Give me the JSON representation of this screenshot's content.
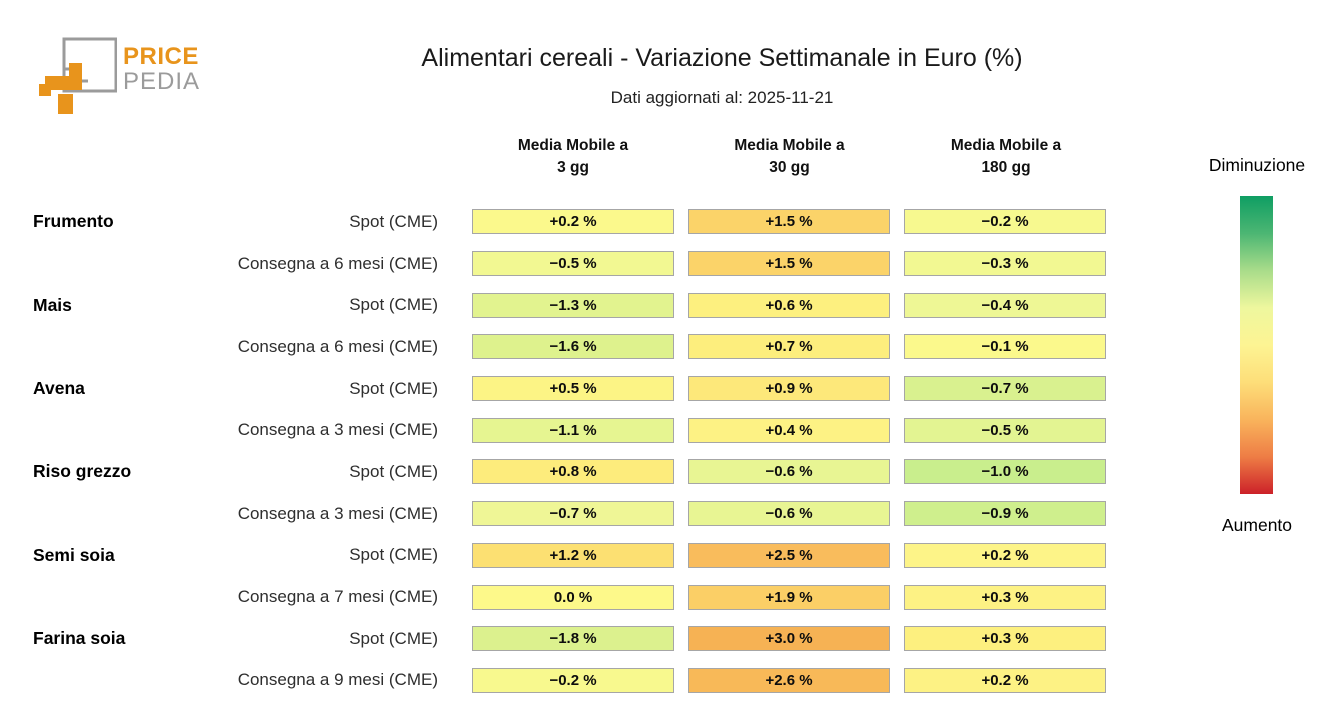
{
  "logo": {
    "line1": "PRICE",
    "line2": "PEDIA",
    "orange": "#e8941c",
    "gray": "#9b9b9b"
  },
  "header": {
    "title": "Alimentari cereali - Variazione Settimanale in Euro (%)",
    "subtitle": "Dati aggiornati al: 2025-11-21"
  },
  "legend": {
    "top_label": "Diminuzione",
    "bottom_label": "Aumento"
  },
  "chart_data": {
    "type": "heatmap",
    "title": "Alimentari cereali - Variazione Settimanale in Euro (%)",
    "subtitle": "Dati aggiornati al: 2025-11-21",
    "unit": "%",
    "columns": [
      {
        "line1": "Media Mobile a",
        "line2": "3 gg"
      },
      {
        "line1": "Media Mobile a",
        "line2": "30 gg"
      },
      {
        "line1": "Media Mobile a",
        "line2": "180 gg"
      }
    ],
    "rows": [
      {
        "group": "Frumento",
        "label": "Spot (CME)",
        "cells": [
          {
            "value": 0.2,
            "display": "+0.2 %",
            "color": "#fbf98c"
          },
          {
            "value": 1.5,
            "display": "+1.5 %",
            "color": "#fbd369"
          },
          {
            "value": -0.2,
            "display": "−0.2 %",
            "color": "#f7f98f"
          }
        ]
      },
      {
        "group": "",
        "label": "Consegna a 6 mesi (CME)",
        "cells": [
          {
            "value": -0.5,
            "display": "−0.5 %",
            "color": "#f2f892"
          },
          {
            "value": 1.5,
            "display": "+1.5 %",
            "color": "#fbd369"
          },
          {
            "value": -0.3,
            "display": "−0.3 %",
            "color": "#f2f892"
          }
        ]
      },
      {
        "group": "Mais",
        "label": "Spot (CME)",
        "cells": [
          {
            "value": -1.3,
            "display": "−1.3 %",
            "color": "#e2f38f"
          },
          {
            "value": 0.6,
            "display": "+0.6 %",
            "color": "#fdf07f"
          },
          {
            "value": -0.4,
            "display": "−0.4 %",
            "color": "#eef795"
          }
        ]
      },
      {
        "group": "",
        "label": "Consegna a 6 mesi (CME)",
        "cells": [
          {
            "value": -1.6,
            "display": "−1.6 %",
            "color": "#def28d"
          },
          {
            "value": 0.7,
            "display": "+0.7 %",
            "color": "#fdee7d"
          },
          {
            "value": -0.1,
            "display": "−0.1 %",
            "color": "#fbf98c"
          }
        ]
      },
      {
        "group": "Avena",
        "label": "Spot (CME)",
        "cells": [
          {
            "value": 0.5,
            "display": "+0.5 %",
            "color": "#fcf485"
          },
          {
            "value": 0.9,
            "display": "+0.9 %",
            "color": "#fde87a"
          },
          {
            "value": -0.7,
            "display": "−0.7 %",
            "color": "#d9f18f"
          }
        ]
      },
      {
        "group": "",
        "label": "Consegna a 3 mesi (CME)",
        "cells": [
          {
            "value": -1.1,
            "display": "−1.1 %",
            "color": "#e6f591"
          },
          {
            "value": 0.4,
            "display": "+0.4 %",
            "color": "#fdf284"
          },
          {
            "value": -0.5,
            "display": "−0.5 %",
            "color": "#e3f492"
          }
        ]
      },
      {
        "group": "Riso grezzo",
        "label": "Spot (CME)",
        "cells": [
          {
            "value": 0.8,
            "display": "+0.8 %",
            "color": "#fdec7c"
          },
          {
            "value": -0.6,
            "display": "−0.6 %",
            "color": "#e8f593"
          },
          {
            "value": -1.0,
            "display": "−1.0 %",
            "color": "#c9ee8d"
          }
        ]
      },
      {
        "group": "",
        "label": "Consegna a 3 mesi (CME)",
        "cells": [
          {
            "value": -0.7,
            "display": "−0.7 %",
            "color": "#eff696"
          },
          {
            "value": -0.6,
            "display": "−0.6 %",
            "color": "#e8f593"
          },
          {
            "value": -0.9,
            "display": "−0.9 %",
            "color": "#cfef8d"
          }
        ]
      },
      {
        "group": "Semi soia",
        "label": "Spot (CME)",
        "cells": [
          {
            "value": 1.2,
            "display": "+1.2 %",
            "color": "#fce072"
          },
          {
            "value": 2.5,
            "display": "+2.5 %",
            "color": "#f9bc5c"
          },
          {
            "value": 0.2,
            "display": "+0.2 %",
            "color": "#fdf488"
          }
        ]
      },
      {
        "group": "",
        "label": "Consegna a 7 mesi (CME)",
        "cells": [
          {
            "value": 0.0,
            "display": "0.0 %",
            "color": "#fdf98a"
          },
          {
            "value": 1.9,
            "display": "+1.9 %",
            "color": "#fbcf66"
          },
          {
            "value": 0.3,
            "display": "+0.3 %",
            "color": "#fdf284"
          }
        ]
      },
      {
        "group": "Farina soia",
        "label": "Spot (CME)",
        "cells": [
          {
            "value": -1.8,
            "display": "−1.8 %",
            "color": "#dcf18e"
          },
          {
            "value": 3.0,
            "display": "+3.0 %",
            "color": "#f6b254"
          },
          {
            "value": 0.3,
            "display": "+0.3 %",
            "color": "#fdf07f"
          }
        ]
      },
      {
        "group": "",
        "label": "Consegna a 9 mesi (CME)",
        "cells": [
          {
            "value": -0.2,
            "display": "−0.2 %",
            "color": "#f8f98e"
          },
          {
            "value": 2.6,
            "display": "+2.6 %",
            "color": "#f8b958"
          },
          {
            "value": 0.2,
            "display": "+0.2 %",
            "color": "#fdf284"
          }
        ]
      }
    ],
    "colorbar": {
      "top_label": "Diminuzione",
      "bottom_label": "Aumento",
      "stops": [
        "#0f9e63",
        "#4cb673",
        "#a9dc8a",
        "#eef79e",
        "#fdf493",
        "#fdde79",
        "#f9b45c",
        "#ee7d45",
        "#cc2129"
      ]
    }
  }
}
